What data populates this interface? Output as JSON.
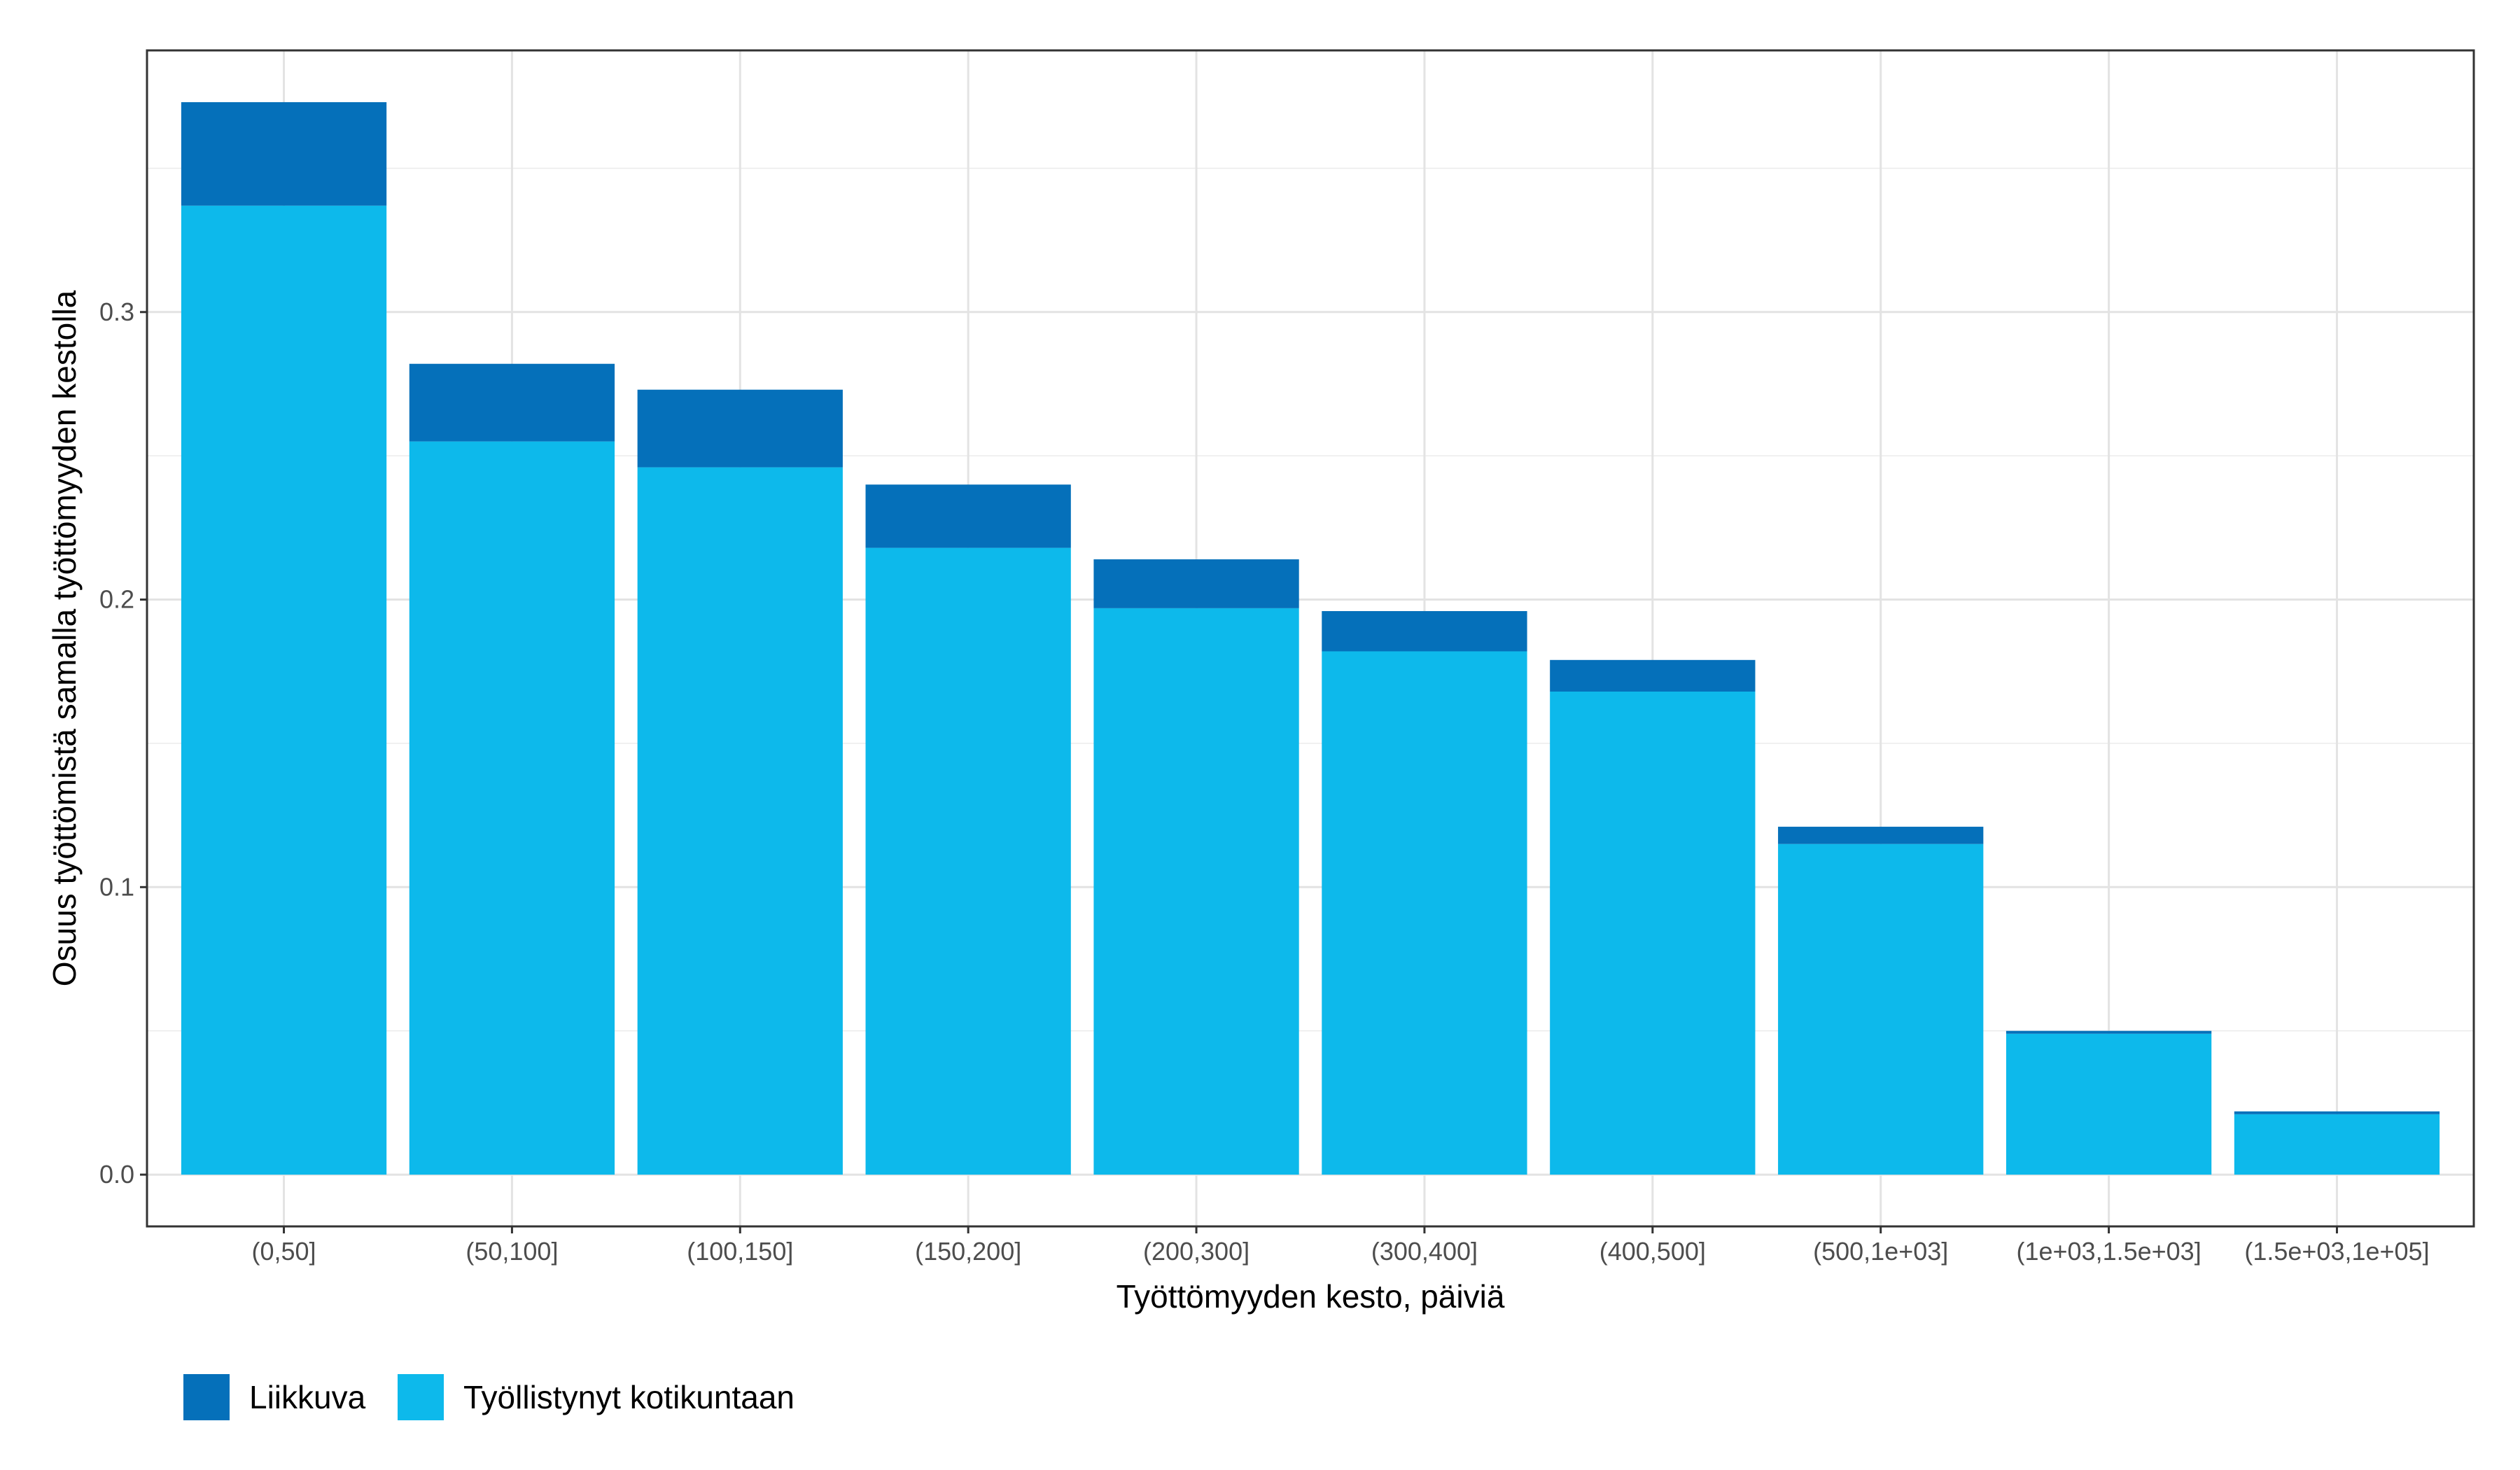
{
  "chart_data": {
    "type": "bar",
    "stacked": true,
    "title": "",
    "xlabel": "Työttömyyden kesto, päiviä",
    "ylabel": "Osuus työttömistä samalla työttömyyden kestolla",
    "categories": [
      "(0,50]",
      "(50,100]",
      "(100,150]",
      "(150,200]",
      "(200,300]",
      "(300,400]",
      "(400,500]",
      "(500,1e+03]",
      "(1e+03,1.5e+03]",
      "(1.5e+03,1e+05]"
    ],
    "series": [
      {
        "name": "Työllistynyt kotikuntaan",
        "color": "#0DB9EB",
        "values": [
          0.337,
          0.255,
          0.246,
          0.218,
          0.197,
          0.182,
          0.168,
          0.115,
          0.049,
          0.021
        ]
      },
      {
        "name": "Liikkuva",
        "color": "#0570BA",
        "values": [
          0.036,
          0.027,
          0.027,
          0.022,
          0.017,
          0.014,
          0.011,
          0.006,
          0.001,
          0.001
        ]
      }
    ],
    "totals": [
      0.373,
      0.282,
      0.273,
      0.24,
      0.214,
      0.196,
      0.179,
      0.121,
      0.05,
      0.022
    ],
    "ylim": [
      -0.018,
      0.391
    ],
    "yticks": [
      0.0,
      0.1,
      0.2,
      0.3
    ],
    "ytick_labels": [
      "0.0",
      "0.1",
      "0.2",
      "0.3"
    ],
    "grid": true,
    "legend": {
      "position": "bottom-left",
      "items": [
        {
          "label": "Liikkuva",
          "color": "#0570BA"
        },
        {
          "label": "Työllistynyt kotikuntaan",
          "color": "#0DB9EB"
        }
      ]
    }
  }
}
